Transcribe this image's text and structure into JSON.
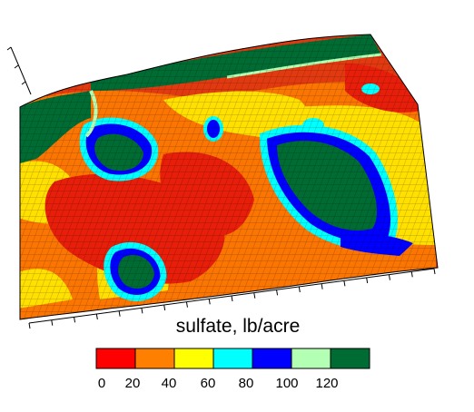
{
  "chart_data": {
    "type": "heatmap",
    "title": "sulfate, lb/acre",
    "colorbar": {
      "bins": [
        {
          "min": 0,
          "max": 20,
          "color": "#ff0000"
        },
        {
          "min": 20,
          "max": 40,
          "color": "#ff8000"
        },
        {
          "min": 40,
          "max": 60,
          "color": "#ffff00"
        },
        {
          "min": 60,
          "max": 80,
          "color": "#00ffff"
        },
        {
          "min": 80,
          "max": 100,
          "color": "#0000ff"
        },
        {
          "min": 100,
          "max": 120,
          "color": "#b3ffb3"
        },
        {
          "min": 120,
          "max": 140,
          "color": "#006b33"
        }
      ],
      "tick_labels": [
        "0",
        "20",
        "40",
        "60",
        "80",
        "100",
        "120"
      ]
    }
  }
}
